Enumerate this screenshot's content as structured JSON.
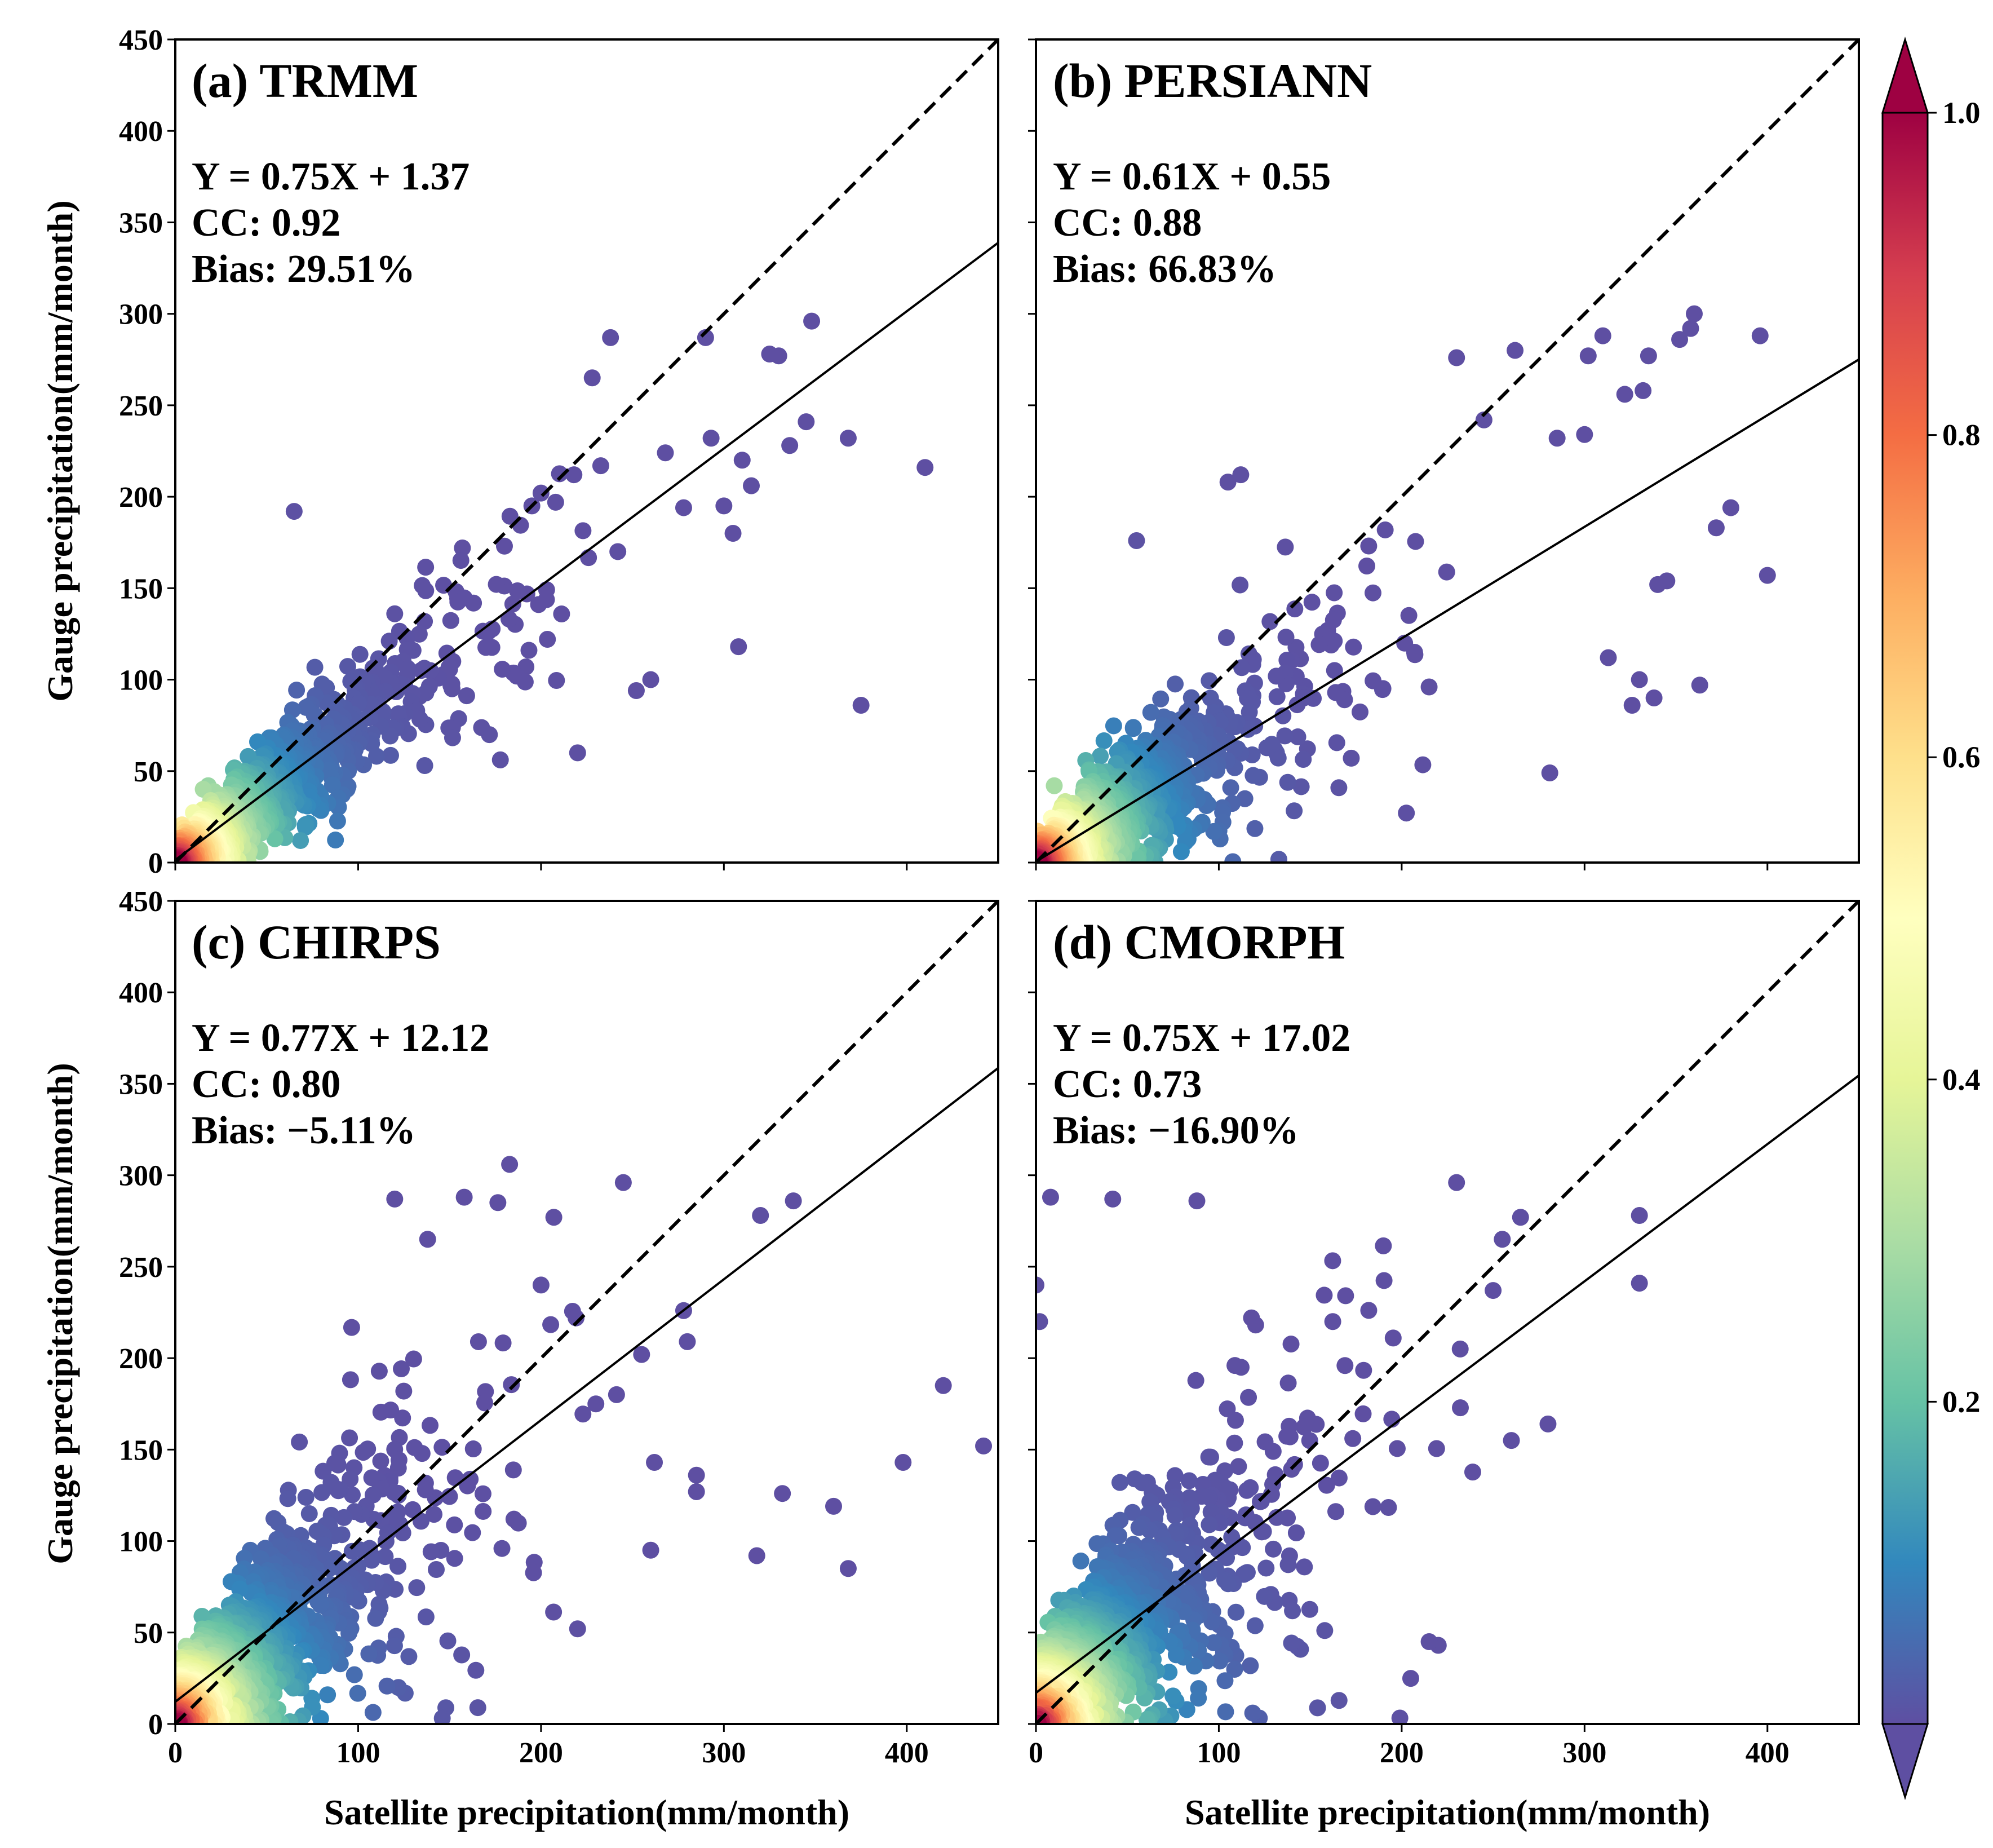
{
  "chart_data": [
    {
      "type": "scatter",
      "title": "(a) TRMM",
      "stats": {
        "equation": "Y = 0.75X + 1.37",
        "cc": "CC: 0.92",
        "bias": "Bias: 29.51%"
      },
      "fit": {
        "slope": 0.75,
        "intercept": 1.37
      },
      "xlabel": "",
      "ylabel": "Gauge precipitation(mm/month)",
      "xlim": [
        0,
        450
      ],
      "ylim": [
        0,
        450
      ],
      "xticks": [],
      "yticks": [
        "0",
        "50",
        "100",
        "150",
        "200",
        "250",
        "300",
        "350",
        "400",
        "450"
      ],
      "scatter_model": {
        "seed": 11,
        "spread": 0.28,
        "offset": 0
      },
      "outliers": [
        [
          18,
          42
        ],
        [
          65,
          192
        ],
        [
          120,
          136
        ],
        [
          157,
          172
        ],
        [
          180,
          173
        ],
        [
          195,
          195
        ],
        [
          200,
          202
        ],
        [
          208,
          197
        ],
        [
          218,
          212
        ],
        [
          220,
          60
        ],
        [
          228,
          265
        ],
        [
          238,
          287
        ],
        [
          242,
          170
        ],
        [
          260,
          100
        ],
        [
          268,
          224
        ],
        [
          278,
          194
        ],
        [
          290,
          287
        ],
        [
          293,
          232
        ],
        [
          300,
          195
        ],
        [
          305,
          180
        ],
        [
          308,
          118
        ],
        [
          310,
          220
        ],
        [
          315,
          206
        ],
        [
          325,
          278
        ],
        [
          330,
          277
        ],
        [
          336,
          228
        ],
        [
          345,
          241
        ],
        [
          348,
          296
        ],
        [
          368,
          232
        ],
        [
          375,
          86
        ],
        [
          410,
          216
        ]
      ]
    },
    {
      "type": "scatter",
      "title": "(b) PERSIANN",
      "stats": {
        "equation": "Y = 0.61X + 0.55",
        "cc": "CC: 0.88",
        "bias": "Bias: 66.83%"
      },
      "fit": {
        "slope": 0.61,
        "intercept": 0.55
      },
      "xlabel": "",
      "ylabel": "",
      "xlim": [
        0,
        450
      ],
      "ylim": [
        0,
        450
      ],
      "xticks": [],
      "yticks": [],
      "scatter_model": {
        "seed": 23,
        "spread": 0.36,
        "offset": 0
      },
      "outliers": [
        [
          10,
          42
        ],
        [
          55,
          176
        ],
        [
          105,
          208
        ],
        [
          112,
          212
        ],
        [
          215,
          96
        ],
        [
          230,
          276
        ],
        [
          245,
          242
        ],
        [
          262,
          280
        ],
        [
          285,
          232
        ],
        [
          302,
          277
        ],
        [
          310,
          288
        ],
        [
          313,
          112
        ],
        [
          322,
          256
        ],
        [
          330,
          100
        ],
        [
          335,
          277
        ],
        [
          345,
          154
        ],
        [
          352,
          286
        ],
        [
          358,
          292
        ],
        [
          360,
          300
        ],
        [
          340,
          152
        ],
        [
          332,
          258
        ],
        [
          300,
          234
        ],
        [
          326,
          86
        ],
        [
          338,
          90
        ],
        [
          363,
          97
        ],
        [
          372,
          183
        ],
        [
          380,
          194
        ],
        [
          396,
          288
        ],
        [
          400,
          157
        ],
        [
          281,
          49
        ]
      ]
    },
    {
      "type": "scatter",
      "title": "(c) CHIRPS",
      "stats": {
        "equation": "Y = 0.77X + 12.12",
        "cc": "CC: 0.80",
        "bias": "Bias: −5.11%"
      },
      "fit": {
        "slope": 0.77,
        "intercept": 12.12
      },
      "xlabel": "Satellite precipitation(mm/month)",
      "ylabel": "Gauge precipitation(mm/month)",
      "xlim": [
        0,
        450
      ],
      "ylim": [
        0,
        450
      ],
      "xticks": [
        "0",
        "100",
        "200",
        "300",
        "400"
      ],
      "yticks": [
        "0",
        "50",
        "100",
        "150",
        "200",
        "250",
        "300",
        "350",
        "400",
        "450"
      ],
      "scatter_model": {
        "seed": 37,
        "spread": 0.52,
        "offset": 12
      },
      "outliers": [
        [
          120,
          287
        ],
        [
          138,
          265
        ],
        [
          158,
          288
        ],
        [
          200,
          240
        ],
        [
          207,
          277
        ],
        [
          220,
          52
        ],
        [
          230,
          175
        ],
        [
          245,
          296
        ],
        [
          255,
          202
        ],
        [
          260,
          95
        ],
        [
          262,
          143
        ],
        [
          280,
          209
        ],
        [
          285,
          136
        ],
        [
          285,
          127
        ],
        [
          320,
          278
        ],
        [
          318,
          92
        ],
        [
          332,
          126
        ],
        [
          338,
          286
        ],
        [
          360,
          119
        ],
        [
          368,
          85
        ],
        [
          398,
          143
        ],
        [
          420,
          185
        ],
        [
          442,
          152
        ],
        [
          278,
          226
        ]
      ]
    },
    {
      "type": "scatter",
      "title": "(d) CMORPH",
      "stats": {
        "equation": "Y = 0.75X + 17.02",
        "cc": "CC: 0.73",
        "bias": "Bias: −16.90%"
      },
      "fit": {
        "slope": 0.75,
        "intercept": 17.02
      },
      "xlabel": "Satellite precipitation(mm/month)",
      "ylabel": "",
      "xlim": [
        0,
        450
      ],
      "ylim": [
        0,
        450
      ],
      "xticks": [
        "0",
        "100",
        "200",
        "300",
        "400"
      ],
      "yticks": [],
      "scatter_model": {
        "seed": 53,
        "spread": 0.62,
        "offset": 17
      },
      "outliers": [
        [
          8,
          288
        ],
        [
          42,
          287
        ],
        [
          88,
          286
        ],
        [
          0,
          240
        ],
        [
          2,
          220
        ],
        [
          230,
          296
        ],
        [
          255,
          265
        ],
        [
          265,
          277
        ],
        [
          280,
          164
        ],
        [
          330,
          278
        ],
        [
          330,
          241
        ],
        [
          250,
          237
        ],
        [
          260,
          155
        ],
        [
          220,
          43
        ],
        [
          215,
          45
        ],
        [
          232,
          205
        ]
      ]
    }
  ],
  "colorbar": {
    "label_ticks": [
      "0.2",
      "0.4",
      "0.6",
      "0.8",
      "1.0"
    ],
    "tick_values": [
      0.2,
      0.4,
      0.6,
      0.8,
      1.0
    ],
    "colors": [
      "#5e4fa2",
      "#3288bd",
      "#66c2a5",
      "#abdda4",
      "#e6f598",
      "#ffffbf",
      "#fee08b",
      "#fdae61",
      "#f46d43",
      "#d53e4f",
      "#9e0142"
    ]
  },
  "marker_color_low": "#5e4fa2",
  "line_color": "#000000"
}
